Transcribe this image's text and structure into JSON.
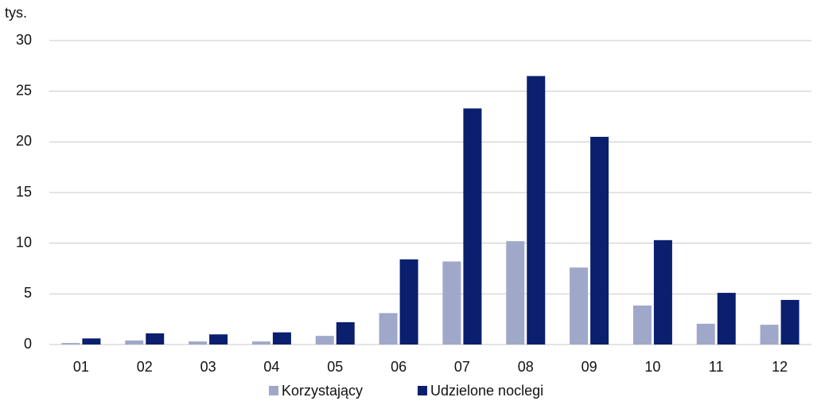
{
  "chart_data": {
    "type": "bar",
    "y_unit_label": "tys.",
    "categories": [
      "01",
      "02",
      "03",
      "04",
      "05",
      "06",
      "07",
      "08",
      "09",
      "10",
      "11",
      "12"
    ],
    "series": [
      {
        "name": "Korzystający",
        "color": "#9fa8c9",
        "values": [
          0.15,
          0.4,
          0.3,
          0.3,
          0.85,
          3.1,
          8.2,
          10.2,
          7.6,
          3.85,
          2.05,
          1.95
        ]
      },
      {
        "name": "Udzielone noclegi",
        "color": "#0a1f6e",
        "values": [
          0.6,
          1.1,
          1.0,
          1.2,
          2.2,
          8.4,
          23.3,
          26.5,
          20.5,
          10.3,
          5.1,
          4.4
        ]
      }
    ],
    "ylim": [
      0,
      30
    ],
    "yticks": [
      0,
      5,
      10,
      15,
      20,
      25,
      30
    ],
    "grid": true
  }
}
